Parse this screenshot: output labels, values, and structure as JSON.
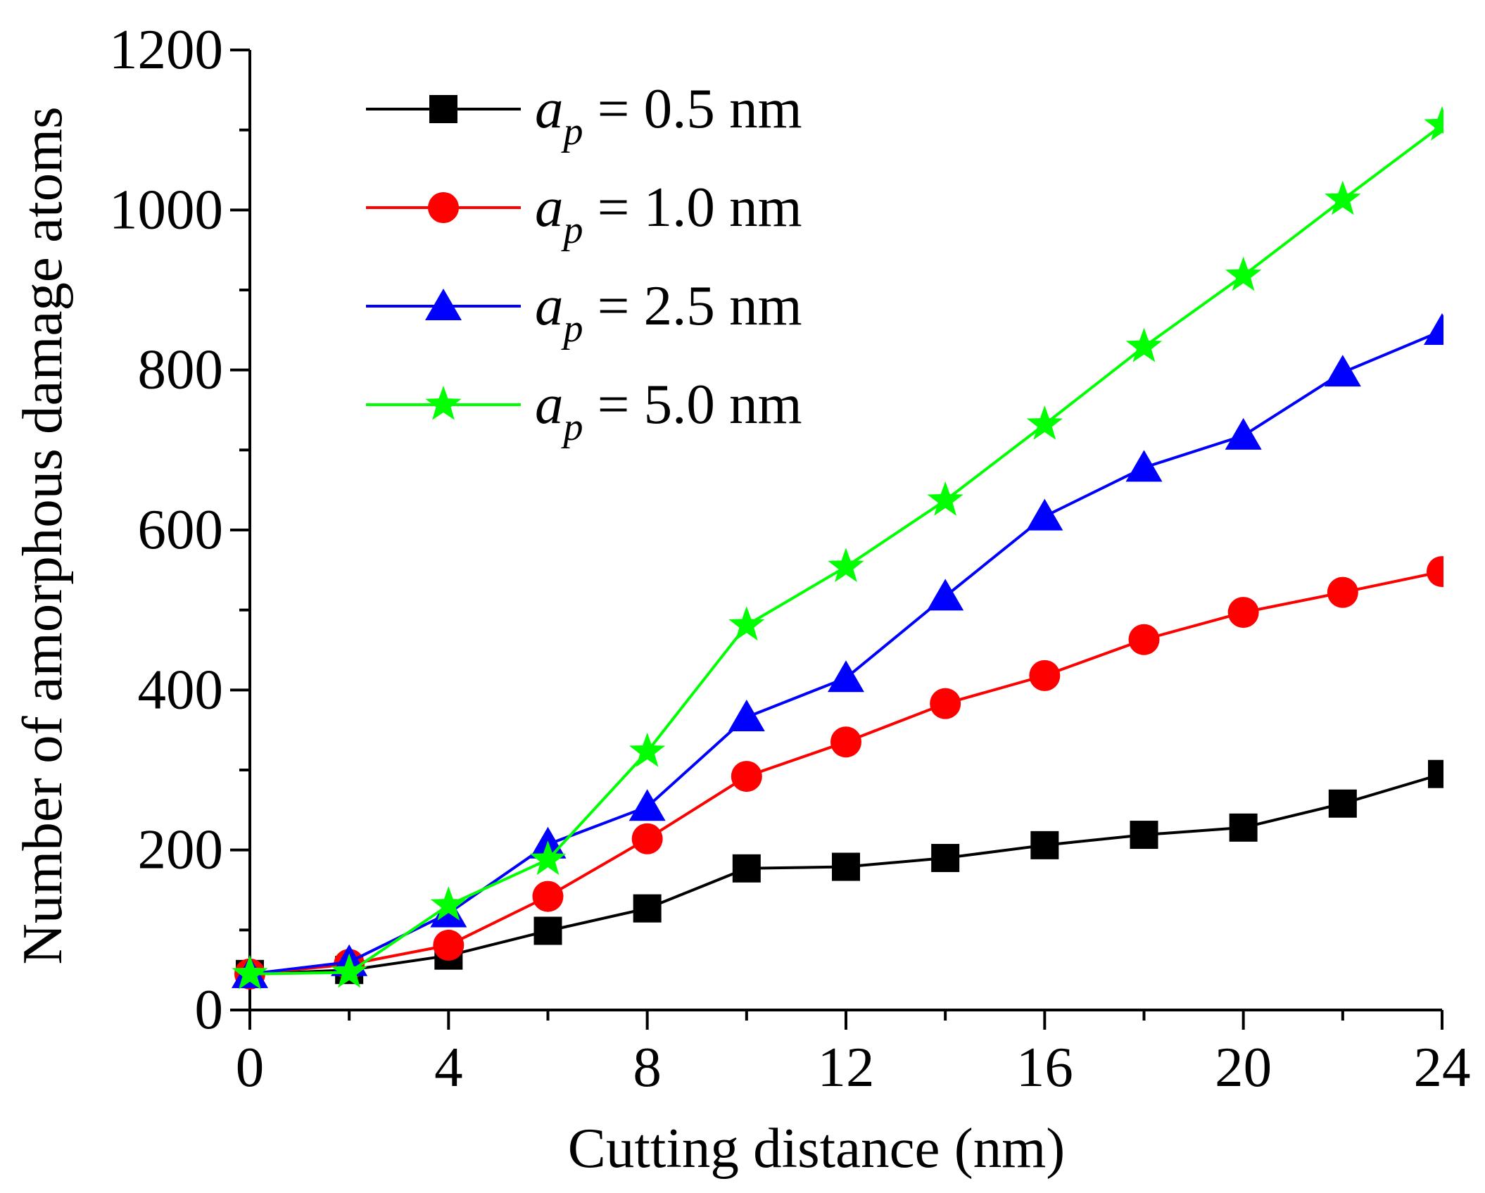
{
  "chart_data": {
    "type": "line",
    "xlabel": "Cutting distance (nm)",
    "ylabel": "Number of amorphous damage atoms",
    "xlim": [
      0,
      24
    ],
    "ylim": [
      0,
      1200
    ],
    "xticks": [
      0,
      4,
      8,
      12,
      16,
      20,
      24
    ],
    "yticks": [
      0,
      200,
      400,
      600,
      800,
      1000,
      1200
    ],
    "xtick_labels": [
      "0",
      "4",
      "8",
      "12",
      "16",
      "20",
      "24"
    ],
    "ytick_labels": [
      "0",
      "200",
      "400",
      "600",
      "800",
      "1000",
      "1200"
    ],
    "grid": false,
    "legend_position": "top-left",
    "x": [
      0,
      2,
      4,
      6,
      8,
      10,
      12,
      14,
      16,
      18,
      20,
      22,
      24
    ],
    "series": [
      {
        "name": "a_p = 0.5 nm",
        "legend_main": "a",
        "legend_sub": "p",
        "legend_rest": " = 0.5 nm",
        "color": "#000000",
        "marker": "square",
        "values": [
          45,
          50,
          68,
          99,
          127,
          177,
          179,
          190,
          206,
          219,
          228,
          258,
          295
        ]
      },
      {
        "name": "a_p = 1.0 nm",
        "legend_main": "a",
        "legend_sub": "p",
        "legend_rest": " = 1.0 nm",
        "color": "#ff0000",
        "marker": "circle",
        "values": [
          45,
          57,
          81,
          142,
          214,
          292,
          335,
          383,
          418,
          463,
          497,
          522,
          548
        ]
      },
      {
        "name": "a_p = 2.5 nm",
        "legend_main": "a",
        "legend_sub": "p",
        "legend_rest": " = 2.5 nm",
        "color": "#0000ff",
        "marker": "triangle",
        "values": [
          45,
          60,
          121,
          207,
          254,
          366,
          415,
          517,
          617,
          678,
          718,
          797,
          849
        ]
      },
      {
        "name": "a_p = 5.0 nm",
        "legend_main": "a",
        "legend_sub": "p",
        "legend_rest": " = 5.0 nm",
        "color": "#00ff00",
        "marker": "star",
        "values": [
          45,
          47,
          131,
          188,
          323,
          481,
          554,
          637,
          732,
          829,
          918,
          1013,
          1106
        ]
      }
    ]
  }
}
